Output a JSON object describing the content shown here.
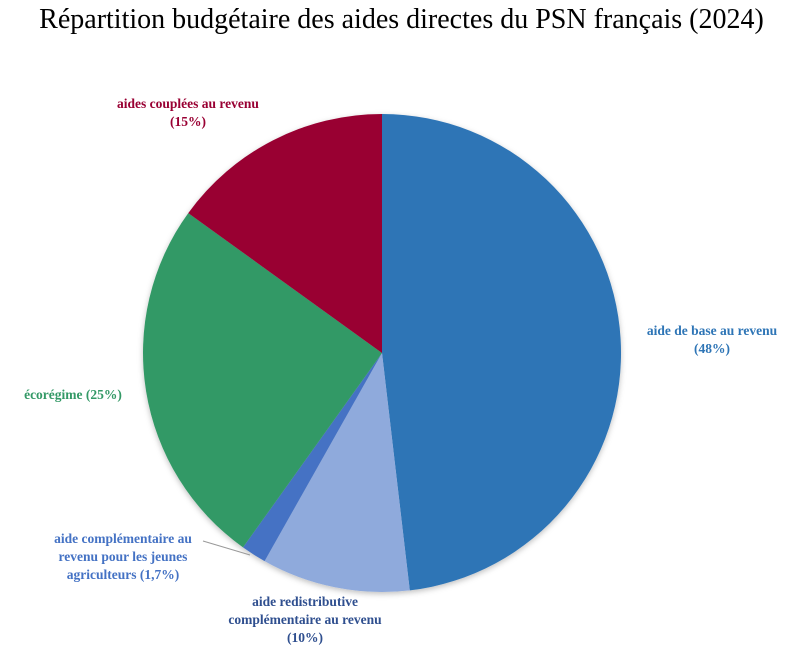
{
  "chart_data": {
    "type": "pie",
    "title": "Répartition budgétaire des aides directes du PSN français (2024)",
    "categories": [
      "aide de base au revenu",
      "aide redistributive complémentaire au revenu",
      "aide complémentaire au revenu pour les jeunes agriculteurs",
      "écorégime",
      "aides couplées au revenu"
    ],
    "values": [
      48,
      10,
      1.7,
      25,
      15
    ],
    "unit": "%",
    "colors": [
      "#2E75B6",
      "#8FAADC",
      "#4472C4",
      "#339966",
      "#990033"
    ],
    "start_angle": "12 o'clock, clockwise",
    "legend": "none (data labels)"
  },
  "labels": {
    "base": {
      "line1": "aide de base au revenu",
      "line2": "(48%)"
    },
    "redistributive": {
      "line1": "aide redistributive",
      "line2": "complémentaire au revenu",
      "line3": "(10%)"
    },
    "jeunes": {
      "line1": "aide complémentaire au",
      "line2": "revenu pour les jeunes",
      "line3": "agriculteurs (1,7%)"
    },
    "ecoregime": {
      "line1": "écorégime (25%)"
    },
    "couplees": {
      "line1": "aides couplées au revenu",
      "line2": "(15%)"
    }
  }
}
